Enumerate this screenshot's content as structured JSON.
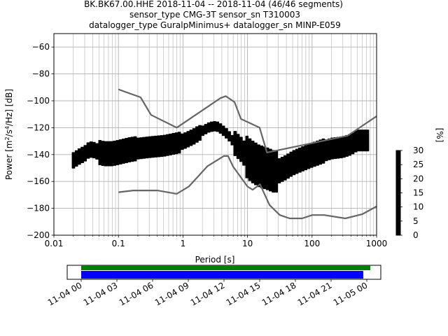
{
  "chart_data": {
    "type": "heatmap",
    "title_lines": [
      "BK.BK67.00.HHE   2018-11-04 -- 2018-11-04  (46/46 segments)",
      "sensor_type CMG-3T sensor_sn T310003",
      "datalogger_type GuralpMinimus+ datalogger_sn MINP-E059"
    ],
    "xlabel": "Period [s]",
    "ylabel_parts": [
      "Power [m",
      "2",
      "/s",
      "4",
      "/Hz] [dB]"
    ],
    "x_scale": "log",
    "xlim": [
      0.01,
      1000
    ],
    "ylim": [
      -200,
      -50
    ],
    "x_ticks": [
      {
        "value": 0.01,
        "label": "0.01"
      },
      {
        "value": 0.1,
        "label": "0.1"
      },
      {
        "value": 1,
        "label": "1"
      },
      {
        "value": 10,
        "label": "10"
      },
      {
        "value": 100,
        "label": "100"
      },
      {
        "value": 1000,
        "label": "1000"
      }
    ],
    "y_ticks": [
      {
        "value": -60,
        "label": "−60"
      },
      {
        "value": -80,
        "label": "−80"
      },
      {
        "value": -100,
        "label": "−100"
      },
      {
        "value": -120,
        "label": "−120"
      },
      {
        "value": -140,
        "label": "−140"
      },
      {
        "value": -160,
        "label": "−160"
      },
      {
        "value": -180,
        "label": "−180"
      },
      {
        "value": -200,
        "label": "−200"
      }
    ],
    "grid": true,
    "noise_model_high": {
      "x": [
        0.1,
        0.22,
        0.32,
        0.8,
        3.8,
        4.6,
        6.3,
        7.9,
        15.4,
        20,
        354.8,
        1000
      ],
      "y": [
        -91.5,
        -97.4,
        -110.5,
        -120,
        -98,
        -96.5,
        -101,
        -113.5,
        -120,
        -138.5,
        -126,
        -111.5
      ]
    },
    "noise_model_low": {
      "x": [
        0.1,
        0.17,
        0.4,
        0.8,
        1.24,
        2.4,
        4.3,
        5,
        6,
        10,
        12,
        15.6,
        21.9,
        31.6,
        45,
        70,
        101,
        154,
        328,
        600,
        1000
      ],
      "y": [
        -168,
        -166.7,
        -166.7,
        -169.2,
        -163.7,
        -148.6,
        -141.1,
        -141.1,
        -149,
        -163.8,
        -166.2,
        -162.1,
        -177.5,
        -185,
        -187.5,
        -187.5,
        -185,
        -185,
        -187.5,
        -184.4,
        -178.6
      ]
    },
    "median_curve": {
      "x": [
        0.02,
        0.025,
        0.03,
        0.035,
        0.04,
        0.05,
        0.06,
        0.08,
        0.1,
        0.15,
        0.2,
        0.3,
        0.5,
        0.8,
        1.0,
        1.5,
        2.0,
        2.5,
        3.0,
        3.5,
        4.0,
        5.0,
        6.0,
        8.0,
        10,
        12,
        15,
        20,
        25,
        30,
        40,
        50,
        70,
        100,
        150,
        200,
        300,
        400,
        500,
        700
      ],
      "y": [
        -144,
        -141,
        -139,
        -136,
        -136,
        -138,
        -139,
        -139,
        -138,
        -136,
        -135,
        -134,
        -133,
        -131,
        -130,
        -126,
        -122,
        -119.5,
        -118.5,
        -119,
        -121,
        -125,
        -130,
        -136,
        -142,
        -145,
        -148,
        -150,
        -152,
        -152,
        -149,
        -146,
        -143,
        -140,
        -137,
        -135,
        -134,
        -132,
        -129,
        -129
      ]
    },
    "colorbar": {
      "label": "[%]",
      "range": [
        0,
        30
      ],
      "ticks": [
        {
          "value": 0,
          "label": "0"
        },
        {
          "value": 5,
          "label": "5"
        },
        {
          "value": 10,
          "label": "10"
        },
        {
          "value": 15,
          "label": "15"
        },
        {
          "value": 20,
          "label": "20"
        },
        {
          "value": 25,
          "label": "25"
        },
        {
          "value": 30,
          "label": "30"
        }
      ],
      "colors": [
        "#ffffff",
        "#ff00ff",
        "#0000ff",
        "#00ffff",
        "#00ff00",
        "#ffff00",
        "#ff0000",
        "#660000"
      ]
    },
    "time_coverage": {
      "time_ticks": [
        "11-04 00",
        "11-04 03",
        "11-04 06",
        "11-04 09",
        "11-04 12",
        "11-04 15",
        "11-04 18",
        "11-04 21",
        "11-05 00"
      ],
      "data_coverage_hours": [
        0,
        24.3
      ],
      "processed_coverage_hours": [
        0,
        23.7
      ],
      "data_color": "#008000",
      "processed_color": "#0000ff"
    }
  }
}
